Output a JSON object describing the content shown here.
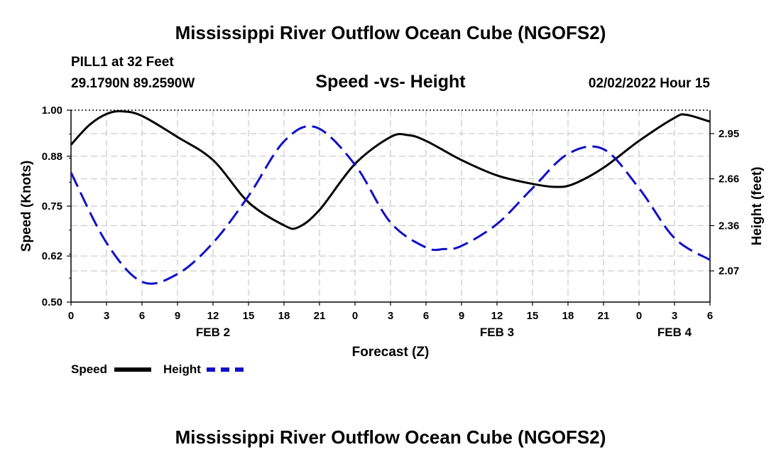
{
  "header": {
    "title": "Mississippi River Outflow Ocean Cube (NGOFS2)",
    "station": "PILL1 at 32 Feet",
    "coords": "29.1790N  89.2590W",
    "subtitle": "Speed -vs- Height",
    "datetime": "02/02/2022 Hour 15"
  },
  "footer": {
    "title": "Mississippi River Outflow Ocean Cube (NGOFS2)"
  },
  "legend": {
    "speed_label": "Speed",
    "height_label": "Height"
  },
  "chart_data": {
    "type": "line",
    "xlabel": "Forecast (Z)",
    "ylabel_left": "Speed (Knots)",
    "ylabel_right": "Height (feet)",
    "x_range_hours": [
      0,
      54
    ],
    "x_tick_labels": [
      "0",
      "3",
      "6",
      "9",
      "12",
      "15",
      "18",
      "21",
      "0",
      "3",
      "6",
      "9",
      "12",
      "15",
      "18",
      "21",
      "0",
      "3",
      "6"
    ],
    "date_labels": [
      {
        "text": "FEB 2",
        "hour": 12
      },
      {
        "text": "FEB 3",
        "hour": 36
      },
      {
        "text": "FEB 4",
        "hour": 51
      }
    ],
    "y_left": {
      "min": 0.5,
      "max": 1.0,
      "ticks": [
        "0.50",
        "0.62",
        "0.75",
        "0.88",
        "1.00"
      ]
    },
    "y_right": {
      "min": 1.87,
      "max": 3.1,
      "ticks": [
        {
          "value": 2.07,
          "label": "2.07"
        },
        {
          "value": 2.36,
          "label": "2.36"
        },
        {
          "value": 2.66,
          "label": "2.66"
        },
        {
          "value": 2.95,
          "label": "2.95"
        }
      ]
    },
    "grid": true,
    "series": [
      {
        "name": "Speed",
        "axis": "left",
        "color": "#000000",
        "style": "solid",
        "x": [
          0,
          1.5,
          3,
          4.3,
          6,
          9,
          12,
          15,
          18,
          19.2,
          21,
          24,
          27,
          28.5,
          30,
          33,
          36,
          39,
          41,
          42.5,
          45,
          48,
          51,
          52,
          54
        ],
        "y": [
          0.91,
          0.96,
          0.99,
          0.997,
          0.985,
          0.93,
          0.87,
          0.76,
          0.7,
          0.695,
          0.74,
          0.86,
          0.93,
          0.935,
          0.92,
          0.87,
          0.83,
          0.808,
          0.8,
          0.808,
          0.85,
          0.92,
          0.98,
          0.988,
          0.97
        ]
      },
      {
        "name": "Height",
        "axis": "right",
        "color": "#1010c8",
        "style": "dashed",
        "x": [
          0,
          3,
          6,
          9,
          12,
          15,
          18,
          20.7,
          24,
          27,
          30,
          31.5,
          33,
          36,
          39,
          42,
          45,
          48,
          51,
          54
        ],
        "y": [
          2.7,
          2.25,
          2.0,
          2.05,
          2.25,
          2.55,
          2.9,
          2.99,
          2.75,
          2.38,
          2.22,
          2.21,
          2.23,
          2.37,
          2.6,
          2.82,
          2.85,
          2.6,
          2.28,
          2.14
        ]
      }
    ]
  }
}
